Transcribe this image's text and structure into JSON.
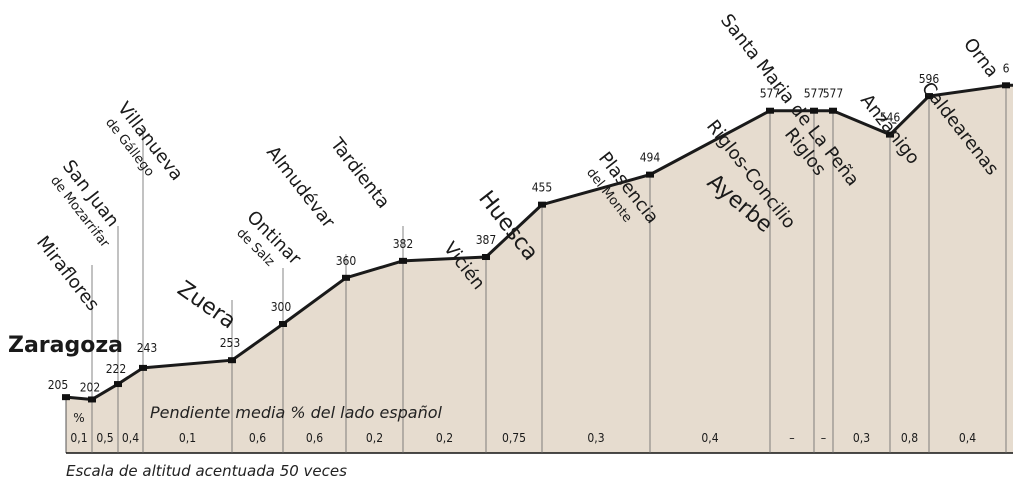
{
  "chart_data": {
    "type": "area",
    "title": "",
    "xlabel": "",
    "ylabel": "",
    "stations": [
      {
        "name": "Zaragoza",
        "sub": "",
        "alt": 205,
        "x": 0
      },
      {
        "name": "Miraflores",
        "sub": "",
        "alt": 202,
        "x": 1
      },
      {
        "name": "San Juan",
        "sub": "de Mozarrifar",
        "alt": 222,
        "x": 2
      },
      {
        "name": "Villanueva",
        "sub": "de Gállego",
        "alt": 243,
        "x": 3
      },
      {
        "name": "Zuera",
        "sub": "",
        "alt": 253,
        "x": 4
      },
      {
        "name": "Ontinar",
        "sub": "de Salz",
        "alt": 300,
        "x": 5
      },
      {
        "name": "Almudévar",
        "sub": "",
        "alt": 360,
        "x": 6
      },
      {
        "name": "Tardienta",
        "sub": "",
        "alt": 382,
        "x": 7
      },
      {
        "name": "Vicién",
        "sub": "",
        "alt": 387,
        "x": 8
      },
      {
        "name": "Huesca",
        "sub": "",
        "alt": 455,
        "x": 9
      },
      {
        "name": "Plasencia",
        "sub": "del Monte",
        "alt": 494,
        "x": 10
      },
      {
        "name": "Ayerbe",
        "sub": "",
        "alt": 577,
        "x": 11
      },
      {
        "name": "Riglos-Concilio",
        "sub": "",
        "alt": 577,
        "x": 12
      },
      {
        "name": "Riglos",
        "sub": "",
        "alt": 577,
        "x": 13
      },
      {
        "name": "Santa Maria de La Peña",
        "sub": "",
        "alt": 546,
        "x": 14
      },
      {
        "name": "Anzánigo",
        "sub": "",
        "alt": 596,
        "x": 15
      },
      {
        "name": "Caldearenas",
        "sub": "",
        "alt": 6,
        "x": 16
      },
      {
        "name": "Orna",
        "sub": "",
        "alt": null,
        "x": 17
      }
    ],
    "slope_header": "%",
    "slope_title": "Pendiente media % del lado español",
    "slopes": [
      "0,1",
      "0,5",
      "0,4",
      "0,1",
      "0,6",
      "0,6",
      "0,2",
      "0,2",
      "0,75",
      "0,3",
      "0,4",
      "–",
      "–",
      "0,3",
      "0,8",
      "0,4"
    ],
    "note": "Escala de altitud acentuada 50 veces",
    "colors": {
      "fill": "#e6dccf",
      "line": "#1a1a1a",
      "marker": "#111111",
      "text": "#1a1a1a"
    }
  }
}
